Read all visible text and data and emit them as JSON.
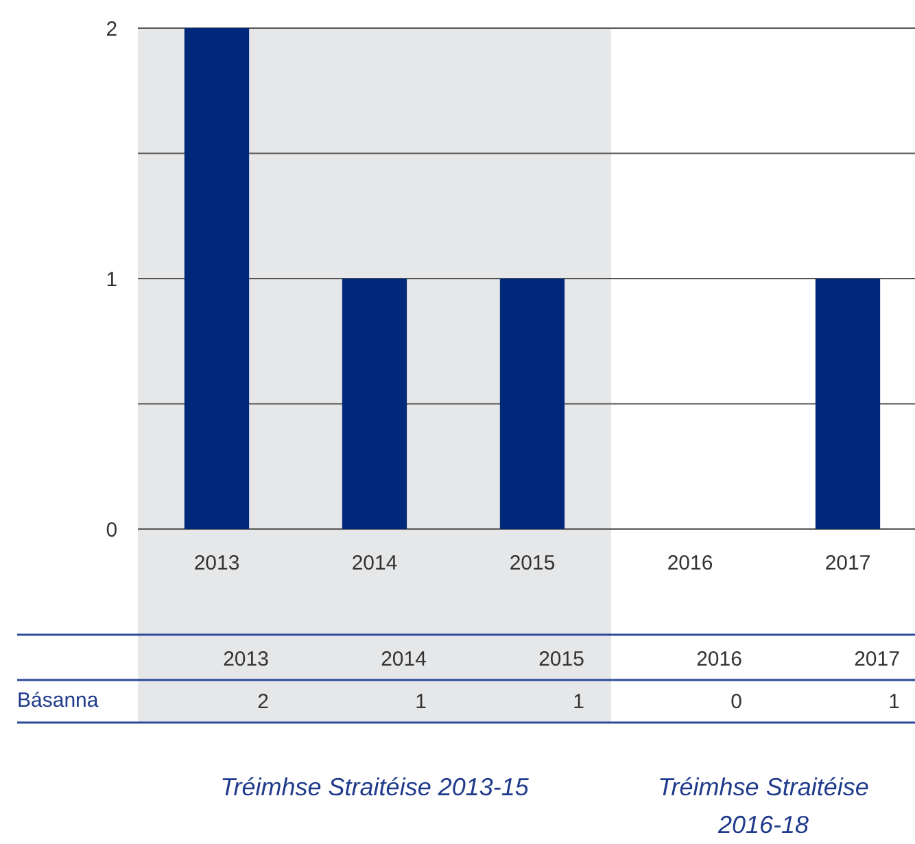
{
  "chart_data": {
    "type": "bar",
    "categories": [
      "2013",
      "2014",
      "2015",
      "2016",
      "2017"
    ],
    "series": [
      {
        "name": "Básanna",
        "color": "#00287a",
        "values": [
          2,
          1,
          1,
          0,
          1
        ]
      }
    ],
    "ylim": [
      0,
      2
    ],
    "yticks": [
      0,
      {
        "value": 0.5,
        "label": null
      },
      1,
      {
        "value": 1.5,
        "label": null
      },
      2
    ],
    "grid": "y",
    "data_labels": true,
    "bands": [
      {
        "axis": "x",
        "from": "2013",
        "to": "2015",
        "color": "#e6e7e8"
      }
    ],
    "annotations": [
      "Tréimhse Straitéise 2013-15",
      "Tréimhse Straitéise 2016-18"
    ]
  }
}
